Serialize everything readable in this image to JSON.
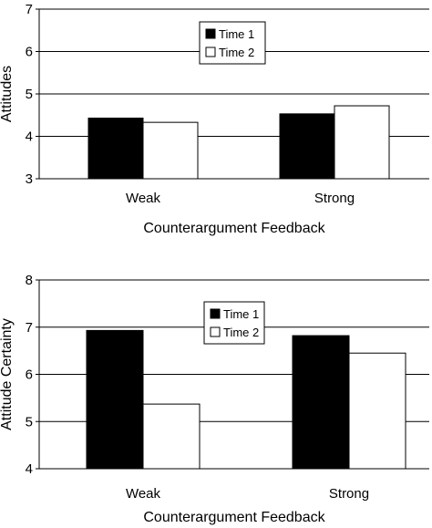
{
  "chart_data": [
    {
      "type": "bar",
      "title": "",
      "ylabel": "Attitudes",
      "xlabel": "Counterargument Feedback",
      "ylim": [
        3,
        7
      ],
      "yticks": [
        3,
        4,
        5,
        6,
        7
      ],
      "grid": true,
      "legend_position": "top-center",
      "categories": [
        "Weak",
        "Strong"
      ],
      "series": [
        {
          "name": "Time 1",
          "values": [
            4.43,
            4.53
          ],
          "color": "#000000"
        },
        {
          "name": "Time 2",
          "values": [
            4.33,
            4.72
          ],
          "color": "#ffffff"
        }
      ]
    },
    {
      "type": "bar",
      "title": "",
      "ylabel": "Attitude Certainty",
      "xlabel": "Counterargument Feedback",
      "ylim": [
        4,
        8
      ],
      "yticks": [
        4,
        5,
        6,
        7,
        8
      ],
      "grid": true,
      "legend_position": "top-center",
      "categories": [
        "Weak",
        "Strong"
      ],
      "series": [
        {
          "name": "Time 1",
          "values": [
            6.93,
            6.82
          ],
          "color": "#000000"
        },
        {
          "name": "Time 2",
          "values": [
            5.37,
            6.45
          ],
          "color": "#ffffff"
        }
      ]
    }
  ]
}
